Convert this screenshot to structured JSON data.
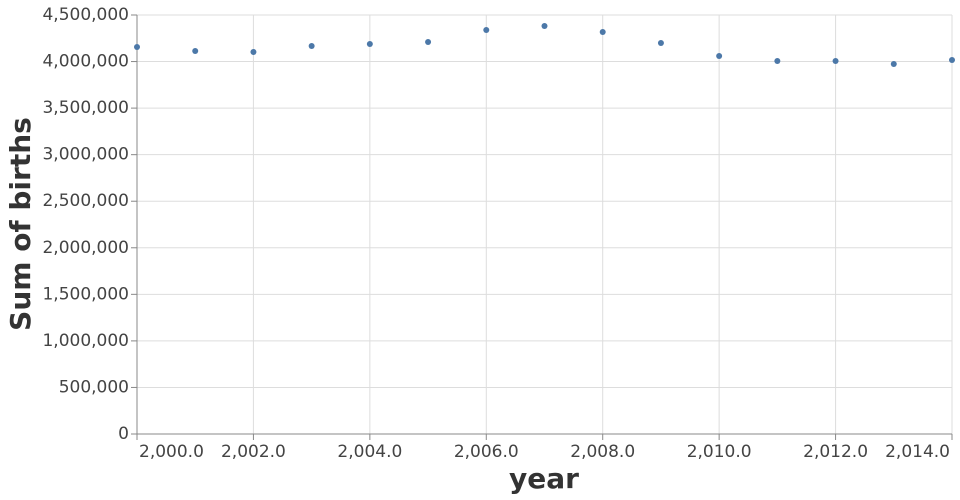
{
  "chart_data": {
    "type": "scatter",
    "x_label": "year",
    "y_label": "Sum of births",
    "x": [
      2000,
      2001,
      2002,
      2003,
      2004,
      2005,
      2006,
      2007,
      2008,
      2009,
      2010,
      2011,
      2012,
      2013,
      2014
    ],
    "values": [
      4156000,
      4113000,
      4103000,
      4167000,
      4188000,
      4210000,
      4339000,
      4382000,
      4317000,
      4199000,
      4060000,
      4006000,
      4006000,
      3974000,
      4017000
    ],
    "color": "#4c78a8",
    "xlim": [
      2000,
      2014
    ],
    "xticks": [
      {
        "value": 2000,
        "label": "2,000.0"
      },
      {
        "value": 2002,
        "label": "2,002.0"
      },
      {
        "value": 2004,
        "label": "2,004.0"
      },
      {
        "value": 2006,
        "label": "2,006.0"
      },
      {
        "value": 2008,
        "label": "2,008.0"
      },
      {
        "value": 2010,
        "label": "2,010.0"
      },
      {
        "value": 2012,
        "label": "2,012.0"
      },
      {
        "value": 2014,
        "label": "2,014.0"
      }
    ],
    "ylim": [
      0,
      4500000
    ],
    "yticks": [
      0,
      {
        "value": 500000,
        "label": "500,000"
      },
      {
        "value": 1000000,
        "label": "1,000,000"
      },
      {
        "value": 1500000,
        "label": "1,500,000"
      },
      {
        "value": 2000000,
        "label": "2,000,000"
      },
      {
        "value": 2500000,
        "label": "2,500,000"
      },
      {
        "value": 3000000,
        "label": "3,000,000"
      },
      {
        "value": 3500000,
        "label": "3,500,000"
      },
      {
        "value": 4000000,
        "label": "4,000,000"
      },
      {
        "value": 4500000,
        "label": "4,500,000"
      }
    ],
    "grid": true
  }
}
